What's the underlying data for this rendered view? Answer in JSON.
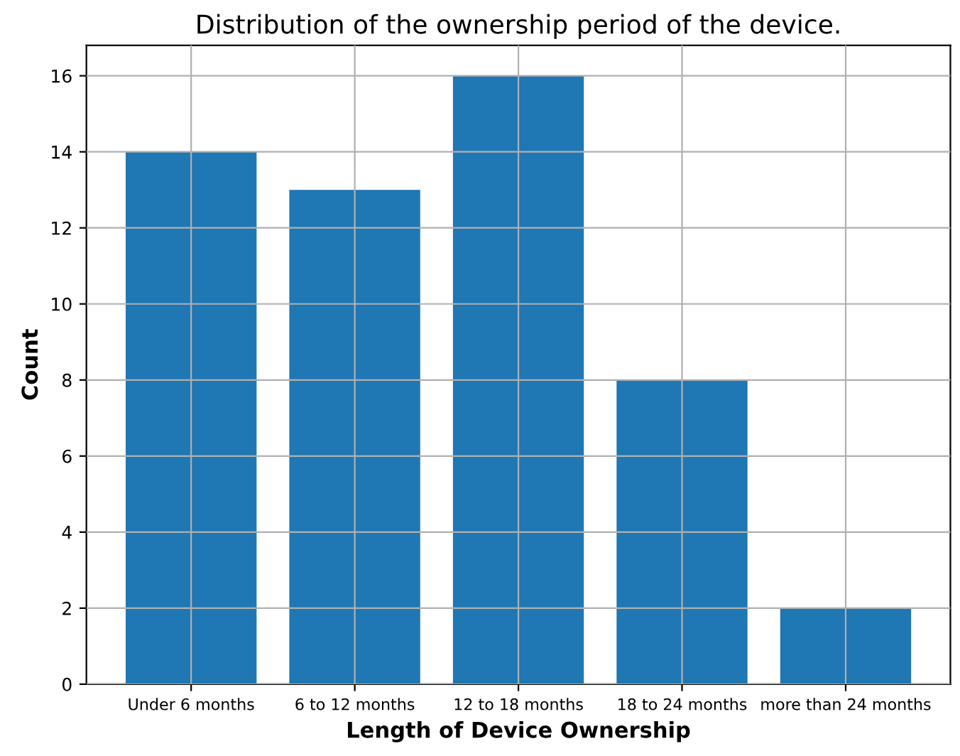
{
  "chart_data": {
    "type": "bar",
    "title": "Distribution of the ownership period of the device.",
    "xlabel": "Length of Device Ownership",
    "ylabel": "Count",
    "categories": [
      "Under 6 months",
      "6 to 12 months",
      "12 to 18 months",
      "18 to 24 months",
      "more than 24 months"
    ],
    "values": [
      14,
      13,
      16,
      8,
      2
    ],
    "color": "#1f77b4",
    "ylim": [
      0,
      16.8
    ],
    "yticks": [
      0,
      2,
      4,
      6,
      8,
      10,
      12,
      14,
      16
    ],
    "grid": true
  }
}
